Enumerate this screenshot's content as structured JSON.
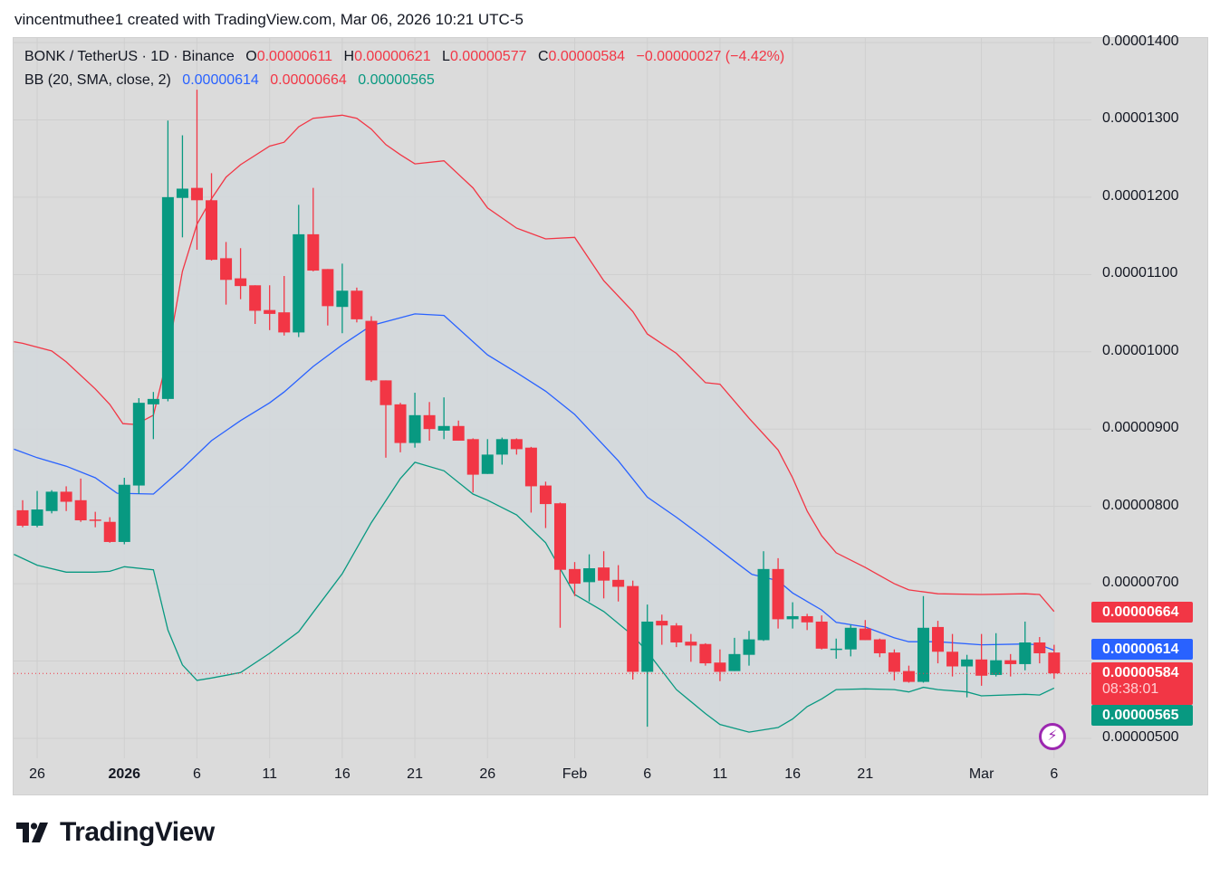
{
  "credit": "vincentmuthee1 created with TradingView.com, Mar 06, 2026 10:21 UTC-5",
  "legend": {
    "symbol": "BONK / TetherUS · 1D · Binance",
    "o_label": "O",
    "o": "0.00000611",
    "h_label": "H",
    "h": "0.00000621",
    "l_label": "L",
    "l": "0.00000577",
    "c_label": "C",
    "c": "0.00000584",
    "change": "−0.00000027 (−4.42%)",
    "bb_label": "BB (20, SMA, close, 2)",
    "bb_basis": "0.00000614",
    "bb_upper": "0.00000664",
    "bb_lower": "0.00000565"
  },
  "price_tags": {
    "upper": "0.00000664",
    "basis": "0.00000614",
    "last": "0.00000584",
    "countdown": "08:38:01",
    "lower": "0.00000565"
  },
  "logo": "TradingView",
  "colors": {
    "up": "#089981",
    "down": "#f23645",
    "basis": "#2962ff",
    "upper": "#f23645",
    "lower": "#089981",
    "band_fill": "#d3d8dc",
    "bg": "#dbdbdb",
    "grid": "#cfcfcf"
  },
  "chart_data": {
    "type": "candlestick",
    "title": "BONK / TetherUS · 1D · Binance",
    "value_unit": "1e-6",
    "ylim": [
      4.74,
      14.06
    ],
    "y_ticks": [
      {
        "v": 14,
        "label": "0.00001400"
      },
      {
        "v": 13,
        "label": "0.00001300"
      },
      {
        "v": 12,
        "label": "0.00001200"
      },
      {
        "v": 11,
        "label": "0.00001100"
      },
      {
        "v": 10,
        "label": "0.00001000"
      },
      {
        "v": 9,
        "label": "0.00000900"
      },
      {
        "v": 8,
        "label": "0.00000800"
      },
      {
        "v": 7,
        "label": "0.00000700"
      },
      {
        "v": 5,
        "label": "0.00000500"
      }
    ],
    "x_ticks": [
      {
        "i": 1,
        "label": "26"
      },
      {
        "i": 7,
        "label": "2026"
      },
      {
        "i": 12,
        "label": "6"
      },
      {
        "i": 17,
        "label": "11"
      },
      {
        "i": 22,
        "label": "16"
      },
      {
        "i": 27,
        "label": "21"
      },
      {
        "i": 32,
        "label": "26"
      },
      {
        "i": 38,
        "label": "Feb"
      },
      {
        "i": 43,
        "label": "6"
      },
      {
        "i": 48,
        "label": "11"
      },
      {
        "i": 53,
        "label": "16"
      },
      {
        "i": 58,
        "label": "21"
      },
      {
        "i": 66,
        "label": "Mar"
      },
      {
        "i": 71,
        "label": "6"
      }
    ],
    "first_date": "Dec 25",
    "candles_ohlc": [
      [
        7.95,
        8.08,
        7.73,
        7.75
      ],
      [
        7.75,
        8.2,
        7.73,
        7.96
      ],
      [
        7.94,
        8.21,
        7.91,
        8.19
      ],
      [
        8.19,
        8.26,
        7.94,
        8.06
      ],
      [
        8.08,
        8.36,
        7.8,
        7.82
      ],
      [
        7.83,
        7.93,
        7.73,
        7.82
      ],
      [
        7.8,
        7.86,
        7.53,
        7.54
      ],
      [
        7.54,
        8.37,
        7.51,
        8.28
      ],
      [
        8.27,
        9.4,
        8.16,
        9.34
      ],
      [
        9.32,
        9.48,
        8.87,
        9.39
      ],
      [
        9.39,
        12.99,
        9.36,
        12.0
      ],
      [
        11.99,
        12.8,
        11.48,
        12.11
      ],
      [
        12.12,
        13.39,
        11.32,
        11.96
      ],
      [
        11.96,
        12.31,
        11.18,
        11.19
      ],
      [
        11.21,
        11.42,
        10.61,
        10.93
      ],
      [
        10.95,
        11.34,
        10.68,
        10.85
      ],
      [
        10.86,
        10.86,
        10.36,
        10.53
      ],
      [
        10.54,
        10.86,
        10.28,
        10.49
      ],
      [
        10.51,
        10.98,
        10.21,
        10.25
      ],
      [
        10.25,
        11.9,
        10.19,
        11.52
      ],
      [
        11.52,
        12.12,
        11.04,
        11.05
      ],
      [
        11.07,
        11.07,
        10.34,
        10.59
      ],
      [
        10.58,
        11.14,
        10.24,
        10.79
      ],
      [
        10.79,
        10.83,
        10.38,
        10.42
      ],
      [
        10.4,
        10.46,
        9.61,
        9.63
      ],
      [
        9.63,
        9.63,
        8.63,
        9.31
      ],
      [
        9.32,
        9.34,
        8.7,
        8.82
      ],
      [
        8.82,
        9.47,
        8.76,
        9.18
      ],
      [
        9.18,
        9.35,
        8.85,
        9.0
      ],
      [
        8.98,
        9.41,
        8.87,
        9.04
      ],
      [
        9.04,
        9.11,
        8.85,
        8.85
      ],
      [
        8.87,
        8.88,
        8.18,
        8.41
      ],
      [
        8.42,
        8.87,
        8.42,
        8.67
      ],
      [
        8.67,
        8.89,
        8.54,
        8.87
      ],
      [
        8.87,
        8.88,
        8.67,
        8.74
      ],
      [
        8.76,
        8.77,
        7.92,
        8.26
      ],
      [
        8.27,
        8.32,
        7.72,
        8.03
      ],
      [
        8.04,
        8.05,
        6.43,
        7.18
      ],
      [
        7.19,
        7.28,
        6.84,
        7.0
      ],
      [
        7.02,
        7.38,
        6.77,
        7.2
      ],
      [
        7.21,
        7.42,
        6.81,
        7.04
      ],
      [
        7.05,
        7.24,
        6.77,
        6.96
      ],
      [
        6.97,
        7.04,
        5.76,
        5.86
      ],
      [
        5.86,
        6.73,
        5.15,
        6.51
      ],
      [
        6.52,
        6.6,
        6.21,
        6.46
      ],
      [
        6.46,
        6.49,
        6.18,
        6.24
      ],
      [
        6.25,
        6.35,
        5.99,
        6.2
      ],
      [
        6.22,
        6.23,
        5.94,
        5.97
      ],
      [
        5.98,
        6.15,
        5.74,
        5.86
      ],
      [
        5.87,
        6.3,
        5.87,
        6.09
      ],
      [
        6.08,
        6.39,
        5.94,
        6.28
      ],
      [
        6.27,
        7.42,
        6.26,
        7.19
      ],
      [
        7.19,
        7.33,
        6.42,
        6.54
      ],
      [
        6.54,
        6.76,
        6.42,
        6.58
      ],
      [
        6.58,
        6.61,
        6.4,
        6.5
      ],
      [
        6.51,
        6.59,
        6.15,
        6.16
      ],
      [
        6.15,
        6.29,
        6.03,
        6.16
      ],
      [
        6.15,
        6.47,
        6.06,
        6.43
      ],
      [
        6.42,
        6.53,
        6.27,
        6.27
      ],
      [
        6.28,
        6.29,
        6.05,
        6.1
      ],
      [
        6.11,
        6.15,
        5.75,
        5.86
      ],
      [
        5.87,
        5.94,
        5.72,
        5.73
      ],
      [
        5.73,
        6.84,
        5.72,
        6.43
      ],
      [
        6.44,
        6.52,
        5.97,
        6.12
      ],
      [
        6.12,
        6.35,
        5.8,
        5.93
      ],
      [
        5.93,
        6.08,
        5.53,
        6.02
      ],
      [
        6.02,
        6.35,
        5.68,
        5.81
      ],
      [
        5.82,
        6.36,
        5.8,
        6.01
      ],
      [
        6.01,
        6.09,
        5.8,
        5.96
      ],
      [
        5.96,
        6.51,
        5.88,
        6.24
      ],
      [
        6.24,
        6.31,
        5.97,
        6.1
      ],
      [
        6.11,
        6.21,
        5.77,
        5.84
      ]
    ],
    "last_price": 5.84,
    "bollinger": {
      "name": "BB (20, SMA, close, 2)",
      "upper": [
        [
          -0.6,
          10.13
        ],
        [
          0,
          10.11
        ],
        [
          2,
          10.01
        ],
        [
          3,
          9.87
        ],
        [
          5,
          9.52
        ],
        [
          6,
          9.32
        ],
        [
          6.9,
          9.07
        ],
        [
          7.8,
          9.06
        ],
        [
          9,
          9.18
        ],
        [
          9.9,
          9.87
        ],
        [
          11,
          11.04
        ],
        [
          12,
          11.65
        ],
        [
          13,
          11.98
        ],
        [
          14,
          12.26
        ],
        [
          15,
          12.42
        ],
        [
          17,
          12.66
        ],
        [
          18,
          12.71
        ],
        [
          19,
          12.91
        ],
        [
          20,
          13.02
        ],
        [
          22,
          13.06
        ],
        [
          23,
          13.02
        ],
        [
          24,
          12.88
        ],
        [
          25,
          12.68
        ],
        [
          26,
          12.55
        ],
        [
          27,
          12.43
        ],
        [
          29,
          12.47
        ],
        [
          31,
          12.12
        ],
        [
          32,
          11.86
        ],
        [
          34,
          11.6
        ],
        [
          36,
          11.46
        ],
        [
          38,
          11.48
        ],
        [
          40,
          10.92
        ],
        [
          42,
          10.52
        ],
        [
          43,
          10.23
        ],
        [
          45,
          9.98
        ],
        [
          47,
          9.6
        ],
        [
          48,
          9.58
        ],
        [
          50,
          9.14
        ],
        [
          52,
          8.73
        ],
        [
          53,
          8.37
        ],
        [
          54,
          7.94
        ],
        [
          55,
          7.62
        ],
        [
          56,
          7.4
        ],
        [
          58,
          7.21
        ],
        [
          60,
          7.0
        ],
        [
          61,
          6.92
        ],
        [
          63,
          6.87
        ],
        [
          66,
          6.86
        ],
        [
          69,
          6.87
        ],
        [
          70,
          6.86
        ],
        [
          71,
          6.64
        ]
      ],
      "middle": [
        [
          -0.6,
          8.74
        ],
        [
          1,
          8.63
        ],
        [
          3,
          8.52
        ],
        [
          5,
          8.37
        ],
        [
          6.5,
          8.17
        ],
        [
          9,
          8.16
        ],
        [
          11,
          8.49
        ],
        [
          13,
          8.85
        ],
        [
          15,
          9.11
        ],
        [
          17,
          9.34
        ],
        [
          18,
          9.48
        ],
        [
          20,
          9.81
        ],
        [
          22,
          10.09
        ],
        [
          24,
          10.34
        ],
        [
          27,
          10.49
        ],
        [
          29,
          10.47
        ],
        [
          32,
          9.96
        ],
        [
          34,
          9.73
        ],
        [
          36,
          9.49
        ],
        [
          38,
          9.19
        ],
        [
          41,
          8.59
        ],
        [
          43,
          8.12
        ],
        [
          45,
          7.86
        ],
        [
          47,
          7.58
        ],
        [
          49,
          7.29
        ],
        [
          50.2,
          7.12
        ],
        [
          52,
          7.04
        ],
        [
          53,
          6.88
        ],
        [
          55,
          6.66
        ],
        [
          56,
          6.5
        ],
        [
          58,
          6.44
        ],
        [
          60,
          6.3
        ],
        [
          61,
          6.25
        ],
        [
          63,
          6.25
        ],
        [
          66,
          6.21
        ],
        [
          69,
          6.22
        ],
        [
          70,
          6.21
        ],
        [
          71,
          6.14
        ]
      ],
      "lower": [
        [
          -0.6,
          7.38
        ],
        [
          1,
          7.24
        ],
        [
          3,
          7.15
        ],
        [
          5,
          7.15
        ],
        [
          6,
          7.16
        ],
        [
          7,
          7.22
        ],
        [
          9,
          7.18
        ],
        [
          10,
          6.4
        ],
        [
          11,
          5.95
        ],
        [
          12,
          5.75
        ],
        [
          13,
          5.78
        ],
        [
          15,
          5.85
        ],
        [
          17,
          6.1
        ],
        [
          19,
          6.38
        ],
        [
          20,
          6.63
        ],
        [
          22,
          7.13
        ],
        [
          24,
          7.79
        ],
        [
          26,
          8.36
        ],
        [
          27,
          8.57
        ],
        [
          29,
          8.46
        ],
        [
          31,
          8.16
        ],
        [
          32,
          8.08
        ],
        [
          34,
          7.89
        ],
        [
          36,
          7.53
        ],
        [
          38,
          6.86
        ],
        [
          40,
          6.64
        ],
        [
          42,
          6.33
        ],
        [
          43,
          6.12
        ],
        [
          45,
          5.63
        ],
        [
          47,
          5.32
        ],
        [
          48,
          5.18
        ],
        [
          50,
          5.08
        ],
        [
          52,
          5.14
        ],
        [
          53,
          5.25
        ],
        [
          54,
          5.41
        ],
        [
          55,
          5.51
        ],
        [
          56,
          5.63
        ],
        [
          58,
          5.64
        ],
        [
          60,
          5.63
        ],
        [
          61,
          5.6
        ],
        [
          62,
          5.66
        ],
        [
          63,
          5.63
        ],
        [
          65,
          5.6
        ],
        [
          66,
          5.55
        ],
        [
          69,
          5.57
        ],
        [
          70,
          5.56
        ],
        [
          71,
          5.65
        ]
      ]
    }
  }
}
